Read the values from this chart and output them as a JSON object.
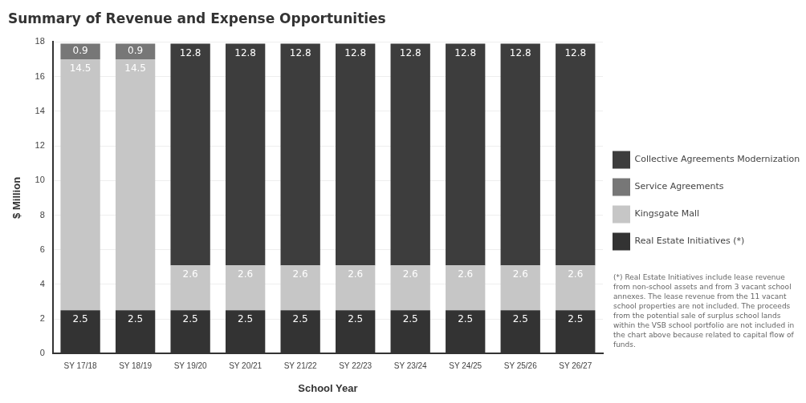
{
  "chart_data": {
    "type": "bar",
    "title": "Summary of Revenue and Expense Opportunities",
    "xlabel": "School Year",
    "ylabel": "$ Million",
    "categories": [
      "SY 17/18",
      "SY 18/19",
      "SY 19/20",
      "SY 20/21",
      "SY 21/22",
      "SY 22/23",
      "SY 23/24",
      "SY 24/25",
      "SY 25/26",
      "SY 26/27"
    ],
    "series": [
      {
        "name": "Real Estate Initiatives (*)",
        "color": "#333333",
        "values": [
          2.5,
          2.5,
          2.5,
          2.5,
          2.5,
          2.5,
          2.5,
          2.5,
          2.5,
          2.5
        ]
      },
      {
        "name": "Kingsgate Mall",
        "color": "#c6c6c6",
        "values": [
          14.5,
          14.5,
          2.6,
          2.6,
          2.6,
          2.6,
          2.6,
          2.6,
          2.6,
          2.6
        ]
      },
      {
        "name": "Service Agreements",
        "color": "#777777",
        "values": [
          0.9,
          0.9,
          null,
          null,
          null,
          null,
          null,
          null,
          null,
          null
        ]
      },
      {
        "name": "Collective Agreements Modernization",
        "color": "#3d3d3d",
        "values": [
          null,
          null,
          12.8,
          12.8,
          12.8,
          12.8,
          12.8,
          12.8,
          12.8,
          12.8
        ]
      }
    ],
    "stacked": true,
    "ylim": [
      0,
      18
    ],
    "yticks": [
      0,
      2,
      4,
      6,
      8,
      10,
      12,
      14,
      16,
      18
    ],
    "grid": "y",
    "legend": "right",
    "data_labels": true,
    "annotations": [
      "(*) Real Estate Initiatives include lease revenue from non-school assets and from 3 vacant school annexes. The lease revenue from the 11 vacant school properties are not included. The proceeds from the potential sale of surplus school lands within the VSB school portfolio are not included in the chart above because related to capital flow of funds."
    ]
  }
}
